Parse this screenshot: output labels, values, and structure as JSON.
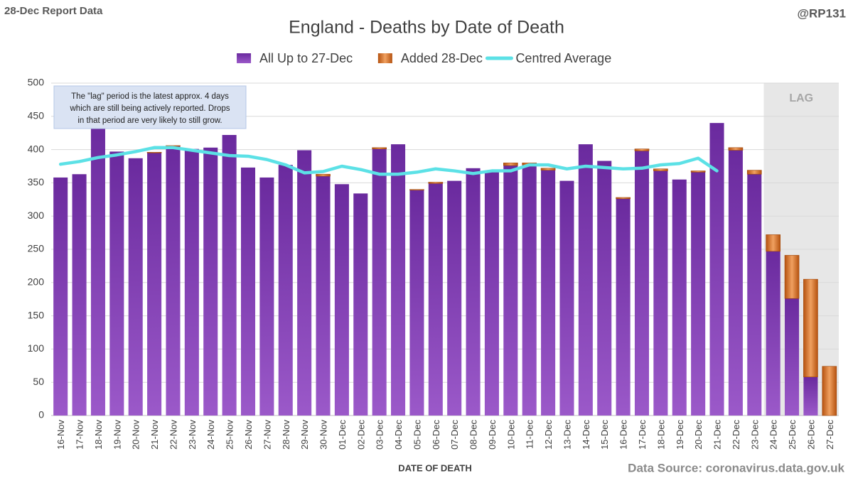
{
  "chart_data": {
    "type": "bar",
    "stacked": true,
    "report_label": "28-Dec Report Data",
    "handle": "@RP131",
    "title": "England - Deaths by Date of Death",
    "xlabel": "DATE OF DEATH",
    "source": "Data Source: coronavirus.data.gov.uk",
    "annotation": [
      "The \"lag\" period is the latest approx. 4 days",
      "which are still being actively reported.  Drops",
      "in that period are very likely to still grow."
    ],
    "lag_label": "LAG",
    "lag_from": "24-Dec",
    "categories": [
      "16-Nov",
      "17-Nov",
      "18-Nov",
      "19-Nov",
      "20-Nov",
      "21-Nov",
      "22-Nov",
      "23-Nov",
      "24-Nov",
      "25-Nov",
      "26-Nov",
      "27-Nov",
      "28-Nov",
      "29-Nov",
      "30-Nov",
      "01-Dec",
      "02-Dec",
      "03-Dec",
      "04-Dec",
      "05-Dec",
      "06-Dec",
      "07-Dec",
      "08-Dec",
      "09-Dec",
      "10-Dec",
      "11-Dec",
      "12-Dec",
      "13-Dec",
      "14-Dec",
      "15-Dec",
      "16-Dec",
      "17-Dec",
      "18-Dec",
      "19-Dec",
      "20-Dec",
      "21-Dec",
      "22-Dec",
      "23-Dec",
      "24-Dec",
      "25-Dec",
      "26-Dec",
      "27-Dec"
    ],
    "series": [
      {
        "name": "All Up to 27-Dec",
        "color": "#7030a0",
        "values": [
          358,
          363,
          443,
          397,
          387,
          395,
          405,
          401,
          403,
          422,
          373,
          358,
          377,
          399,
          360,
          348,
          334,
          401,
          408,
          339,
          349,
          353,
          372,
          368,
          376,
          377,
          369,
          353,
          408,
          383,
          326,
          398,
          368,
          355,
          366,
          440,
          399,
          363,
          247,
          176,
          58,
          0
        ]
      },
      {
        "name": "Added 28-Dec",
        "color": "#c55a11",
        "values": [
          0,
          0,
          0,
          0,
          0,
          1,
          1,
          0,
          0,
          0,
          0,
          0,
          0,
          0,
          3,
          0,
          0,
          2,
          0,
          1,
          2,
          0,
          0,
          0,
          4,
          3,
          3,
          0,
          0,
          0,
          2,
          3,
          3,
          0,
          2,
          0,
          4,
          6,
          25,
          65,
          147,
          74
        ]
      },
      {
        "name": "Centred Average",
        "color": "#5ce1e6",
        "type": "line",
        "values": [
          378,
          382,
          388,
          392,
          397,
          403,
          403,
          399,
          395,
          391,
          390,
          385,
          377,
          365,
          367,
          375,
          370,
          363,
          363,
          366,
          371,
          368,
          364,
          368,
          368,
          377,
          377,
          371,
          375,
          373,
          371,
          372,
          377,
          379,
          387,
          368,
          null,
          null,
          null,
          null,
          null,
          null
        ]
      }
    ],
    "ylim": [
      0,
      500
    ],
    "yticks": [
      0,
      50,
      100,
      150,
      200,
      250,
      300,
      350,
      400,
      450,
      500
    ],
    "grid": true
  }
}
